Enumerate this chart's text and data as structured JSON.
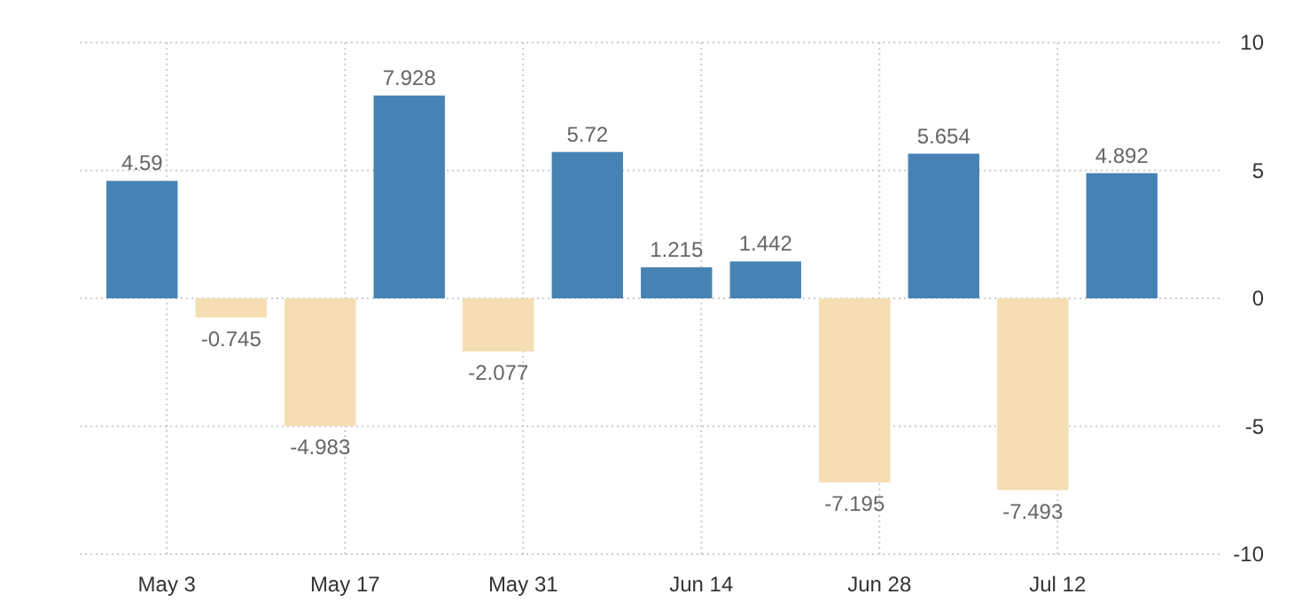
{
  "chart_data": {
    "type": "bar",
    "categories": [
      "May 3",
      null,
      "May 17",
      null,
      "May 31",
      null,
      "Jun 14",
      null,
      "Jun 28",
      null,
      "Jul 12",
      null
    ],
    "values": [
      4.59,
      -0.745,
      -4.983,
      7.928,
      -2.077,
      5.72,
      1.215,
      1.442,
      -7.195,
      5.654,
      -7.493,
      4.892
    ],
    "colors": [
      "#4682b4",
      "#f5deb3",
      "#f5deb3",
      "#4682b4",
      "#f5deb3",
      "#4682b4",
      "#4682b4",
      "#4682b4",
      "#f5deb3",
      "#4682b4",
      "#f5deb3",
      "#4682b4"
    ],
    "ylim": [
      -10,
      10
    ],
    "yticks": [
      -10,
      -5,
      0,
      5,
      10
    ],
    "grid": true,
    "data_labels": true
  }
}
